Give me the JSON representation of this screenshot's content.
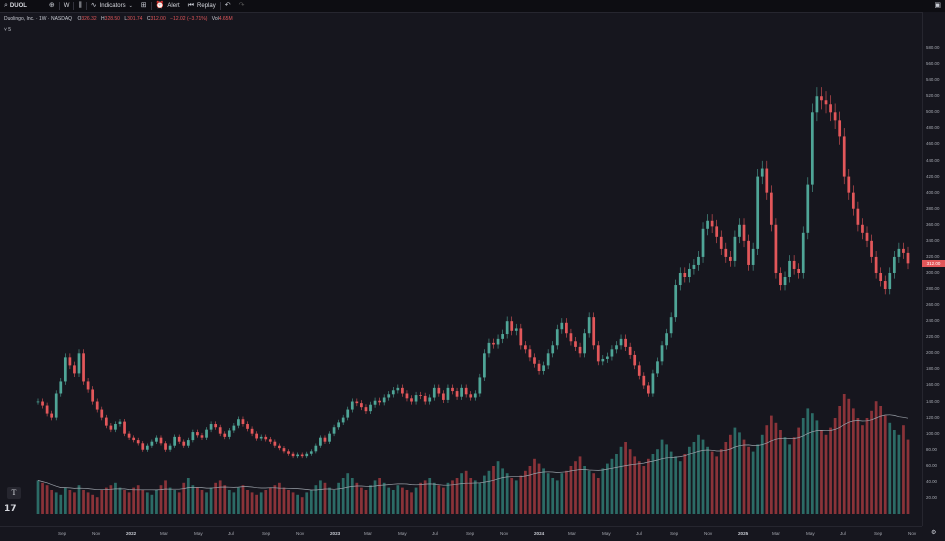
{
  "toolbar": {
    "symbol": "DUOL",
    "interval": "W",
    "indicators_label": "Indicators",
    "alert_label": "Alert",
    "replay_label": "Replay"
  },
  "legend": {
    "title": "Duolingo, Inc. · 1W · NASDAQ",
    "open_key": "O",
    "open": "326.32",
    "high_key": "H",
    "high": "328.50",
    "low_key": "L",
    "low": "301.74",
    "close_key": "C",
    "close": "312.00",
    "change": "−12.02 (−3.71%)",
    "vol_key": "Vol",
    "vol": "4.65M",
    "toggle": "˅ 5"
  },
  "price_axis": {
    "labels": [
      "580.00",
      "560.00",
      "540.00",
      "520.00",
      "500.00",
      "480.00",
      "460.00",
      "440.00",
      "420.00",
      "400.00",
      "380.00",
      "360.00",
      "340.00",
      "320.00",
      "300.00",
      "280.00",
      "260.00",
      "240.00",
      "220.00",
      "200.00",
      "180.00",
      "160.00",
      "140.00",
      "120.00",
      "100.00",
      "80.00",
      "60.00",
      "40.00",
      "20.00"
    ],
    "last_price": "312.00"
  },
  "time_axis": {
    "labels": [
      {
        "text": "Sep",
        "year": false
      },
      {
        "text": "Nov",
        "year": false
      },
      {
        "text": "2022",
        "year": true
      },
      {
        "text": "Mar",
        "year": false
      },
      {
        "text": "May",
        "year": false
      },
      {
        "text": "Jul",
        "year": false
      },
      {
        "text": "Sep",
        "year": false
      },
      {
        "text": "Nov",
        "year": false
      },
      {
        "text": "2023",
        "year": true
      },
      {
        "text": "Mar",
        "year": false
      },
      {
        "text": "May",
        "year": false
      },
      {
        "text": "Jul",
        "year": false
      },
      {
        "text": "Sep",
        "year": false
      },
      {
        "text": "Nov",
        "year": false
      },
      {
        "text": "2024",
        "year": true
      },
      {
        "text": "Mar",
        "year": false
      },
      {
        "text": "May",
        "year": false
      },
      {
        "text": "Jul",
        "year": false
      },
      {
        "text": "Sep",
        "year": false
      },
      {
        "text": "Nov",
        "year": false
      },
      {
        "text": "2025",
        "year": true
      },
      {
        "text": "Mar",
        "year": false
      },
      {
        "text": "May",
        "year": false
      },
      {
        "text": "Jul",
        "year": false
      },
      {
        "text": "Sep",
        "year": false
      },
      {
        "text": "Nov",
        "year": false
      }
    ]
  },
  "colors": {
    "up": "#4fa597",
    "down": "#e2575a",
    "vol_up": "#2c6b66",
    "vol_down": "#8a3339",
    "ma": "#9aa0a8"
  },
  "chart_data": {
    "type": "candlestick",
    "symbol": "DUOL",
    "interval": "1W",
    "start_price": 140,
    "closes": [
      140,
      135,
      125,
      120,
      150,
      165,
      195,
      185,
      175,
      200,
      165,
      155,
      140,
      130,
      120,
      110,
      105,
      112,
      115,
      100,
      95,
      92,
      88,
      80,
      85,
      90,
      95,
      88,
      80,
      85,
      96,
      90,
      85,
      92,
      102,
      98,
      95,
      105,
      112,
      108,
      100,
      96,
      104,
      110,
      118,
      112,
      106,
      100,
      94,
      96,
      93,
      90,
      85,
      82,
      78,
      75,
      72,
      74,
      72,
      75,
      78,
      85,
      95,
      90,
      100,
      108,
      114,
      120,
      130,
      140,
      138,
      133,
      128,
      136,
      141,
      139,
      145,
      149,
      154,
      157,
      150,
      144,
      140,
      148,
      147,
      140,
      145,
      157,
      150,
      142,
      157,
      153,
      146,
      157,
      149,
      145,
      150,
      170,
      200,
      213,
      211,
      218,
      224,
      240,
      228,
      231,
      210,
      205,
      195,
      187,
      178,
      185,
      200,
      210,
      230,
      238,
      225,
      215,
      208,
      200,
      225,
      245,
      210,
      190,
      193,
      196,
      205,
      210,
      218,
      208,
      198,
      185,
      172,
      160,
      150,
      175,
      190,
      210,
      225,
      245,
      285,
      300,
      295,
      305,
      310,
      320,
      355,
      365,
      358,
      345,
      330,
      320,
      315,
      345,
      360,
      340,
      310,
      330,
      420,
      430,
      400,
      360,
      300,
      285,
      295,
      315,
      305,
      300,
      350,
      410,
      500,
      520,
      515,
      510,
      500,
      490,
      470,
      420,
      400,
      380,
      360,
      350,
      340,
      320,
      300,
      290,
      280,
      300,
      320,
      330,
      325,
      312
    ],
    "volumes": [
      28,
      26,
      24,
      20,
      18,
      16,
      22,
      20,
      18,
      24,
      20,
      18,
      16,
      14,
      20,
      22,
      24,
      26,
      22,
      20,
      18,
      22,
      24,
      20,
      18,
      16,
      20,
      24,
      28,
      22,
      20,
      18,
      26,
      30,
      24,
      22,
      20,
      18,
      22,
      26,
      28,
      24,
      20,
      18,
      22,
      24,
      20,
      18,
      16,
      18,
      20,
      22,
      24,
      26,
      22,
      20,
      18,
      16,
      14,
      18,
      20,
      24,
      28,
      26,
      22,
      20,
      26,
      30,
      34,
      30,
      26,
      22,
      20,
      24,
      28,
      30,
      26,
      22,
      20,
      24,
      22,
      20,
      18,
      22,
      26,
      28,
      30,
      26,
      24,
      22,
      26,
      28,
      30,
      34,
      36,
      30,
      28,
      26,
      32,
      36,
      40,
      44,
      38,
      34,
      30,
      28,
      32,
      36,
      40,
      46,
      42,
      38,
      34,
      30,
      28,
      34,
      36,
      40,
      44,
      48,
      40,
      36,
      34,
      30,
      38,
      42,
      46,
      50,
      56,
      60,
      54,
      48,
      44,
      40,
      46,
      50,
      54,
      62,
      58,
      52,
      48,
      44,
      50,
      56,
      60,
      66,
      62,
      56,
      52,
      48,
      54,
      60,
      66,
      72,
      68,
      62,
      56,
      52,
      58,
      66,
      74,
      82,
      76,
      70,
      64,
      58,
      64,
      72,
      80,
      88,
      84,
      78,
      70,
      66,
      72,
      80,
      90,
      100,
      96,
      88,
      80,
      74,
      80,
      86,
      94,
      90,
      82,
      76,
      70,
      66,
      74,
      62
    ],
    "ma_volumes_note": "",
    "price_range": [
      0,
      590
    ],
    "last_close": 312.0,
    "change": -12.02,
    "change_pct": -3.71,
    "volume_last": "4.65M"
  }
}
